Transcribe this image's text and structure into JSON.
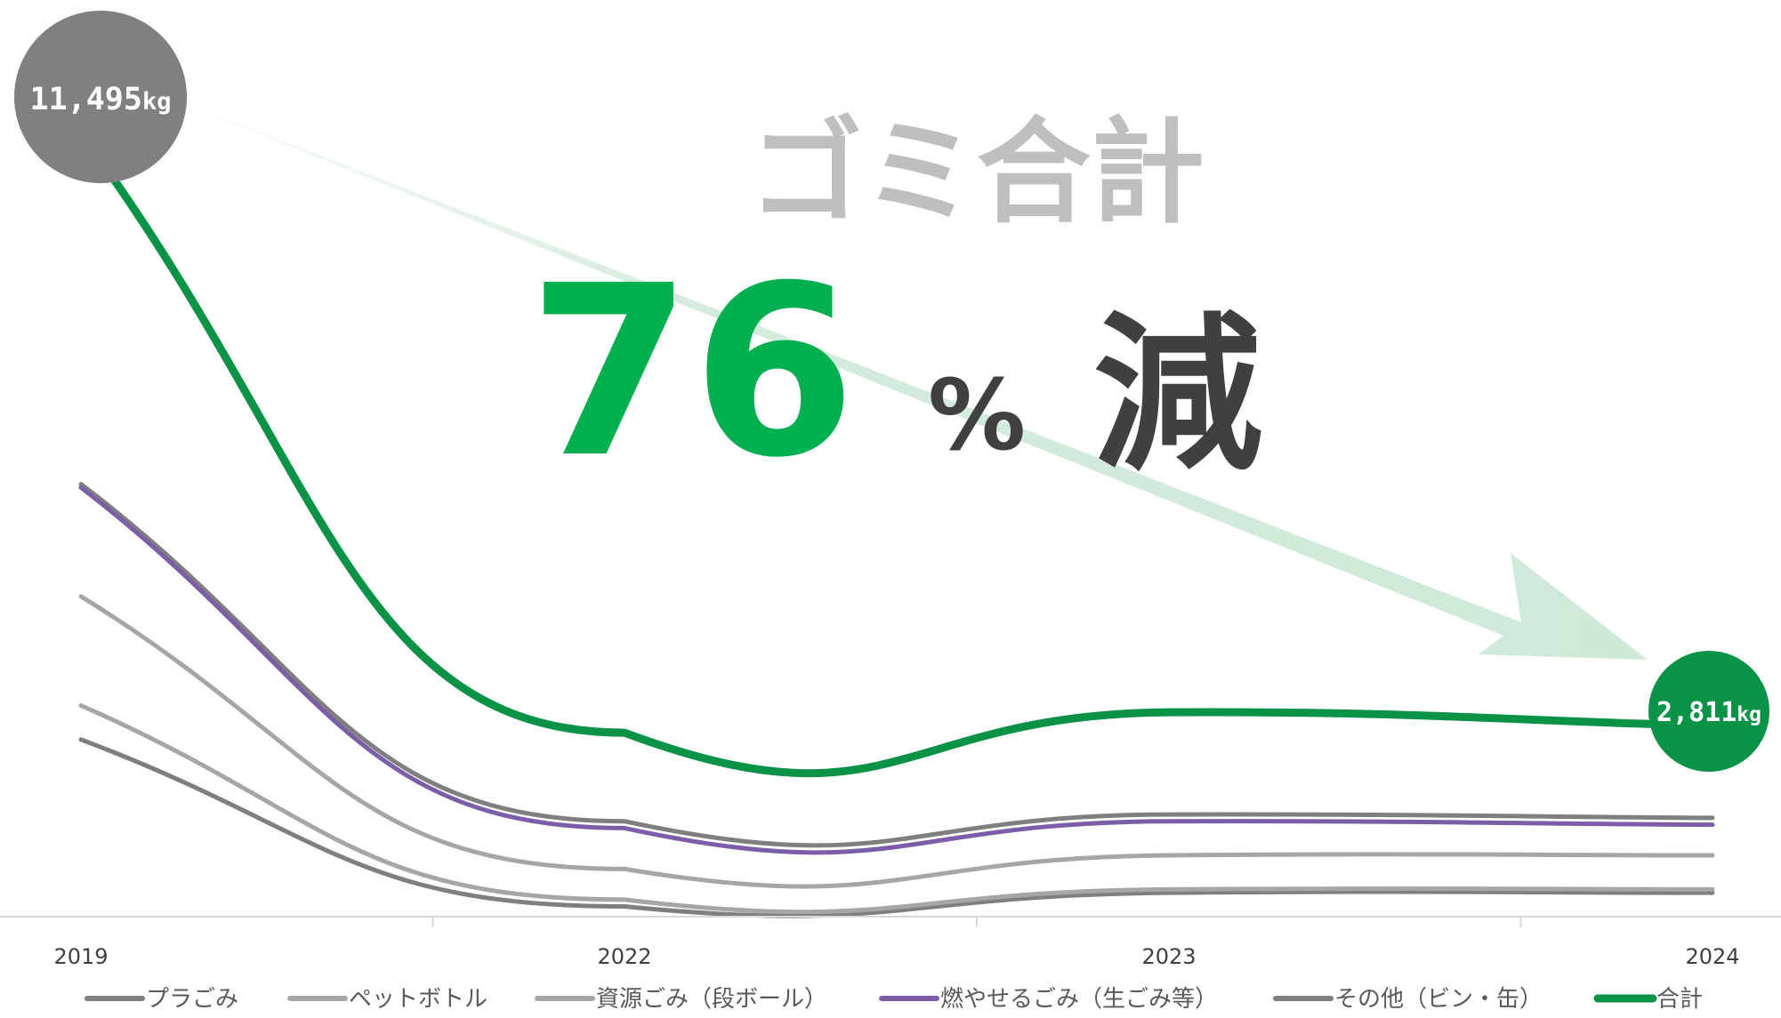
{
  "chart_data": {
    "type": "line",
    "categories": [
      "2019",
      "2022",
      "2023",
      "2024"
    ],
    "series": [
      {
        "name": "プラごみ",
        "color": "#7f7f7f",
        "values": [
          2600,
          150,
          350,
          350
        ]
      },
      {
        "name": "ペットボトル",
        "color": "#a6a6a6",
        "values": [
          3100,
          250,
          400,
          400
        ]
      },
      {
        "name": "資源ごみ（段ボール）",
        "color": "#a6a6a6",
        "values": [
          4700,
          700,
          900,
          900
        ]
      },
      {
        "name": "燃やせるごみ（生ごみ等）",
        "color": "#7b5ea7",
        "values": [
          6300,
          1300,
          1400,
          1350
        ]
      },
      {
        "name": "その他（ビン・缶）",
        "color": "#7f7f7f",
        "values": [
          6350,
          1400,
          1500,
          1450
        ]
      },
      {
        "name": "合計",
        "color": "#0a9246",
        "values": [
          11495,
          2700,
          3000,
          2811
        ]
      }
    ],
    "data_labels": {
      "start": {
        "number": "11,495",
        "unit": "kg",
        "color": "#808080"
      },
      "end": {
        "number": "2,811",
        "unit": "kg",
        "color": "#0a9246"
      }
    },
    "annotation": {
      "title": "ゴミ合計",
      "big_number": "76",
      "percent": "%",
      "suffix": "減",
      "number_color": "#00b050",
      "suffix_color": "#404040",
      "title_color": "#bfbfbf",
      "arrow_color": "#cfe9d9"
    },
    "ylim": [
      0,
      13000
    ],
    "grid": false,
    "legend": "bottom"
  }
}
